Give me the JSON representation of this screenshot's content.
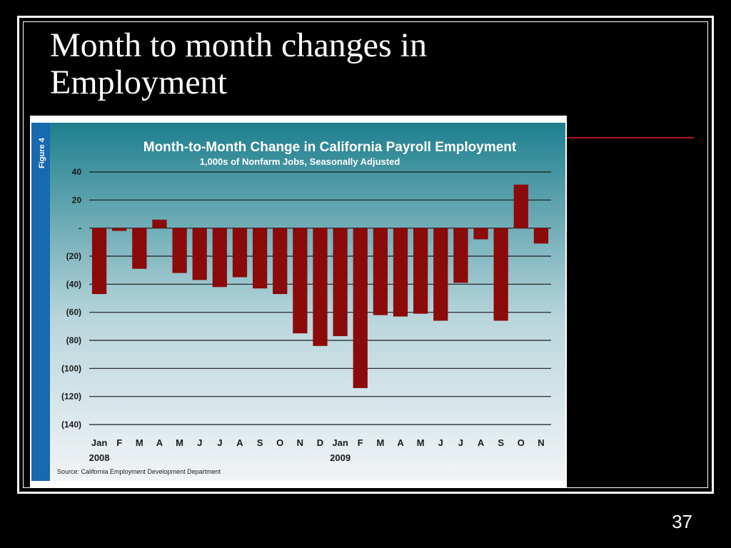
{
  "slide": {
    "title_lines": [
      "Month to month changes in",
      "Employment"
    ],
    "page_number": "37"
  },
  "colors": {
    "background": "#000000",
    "bar": "#8b0a0a",
    "panel_top": "#1e7f8e",
    "panel_bottom": "#f2f4f6",
    "side_label_bg": "#1769b0",
    "accent_rule": "#b01818"
  },
  "chart_data": {
    "type": "bar",
    "figure_label": "Figure 4",
    "title": "Month-to-Month Change in California Payroll Employment",
    "subtitle": "1,000s of Nonfarm Jobs, Seasonally Adjusted",
    "source": "Source: California Employment Development Department",
    "categories": [
      "Jan",
      "F",
      "M",
      "A",
      "M",
      "J",
      "J",
      "A",
      "S",
      "O",
      "N",
      "D",
      "Jan",
      "F",
      "M",
      "A",
      "M",
      "J",
      "J",
      "A",
      "S",
      "O",
      "N"
    ],
    "year_labels": [
      {
        "label": "2008",
        "category_index": 0
      },
      {
        "label": "2009",
        "category_index": 12
      }
    ],
    "values": [
      -47,
      -2,
      -29,
      6,
      -32,
      -37,
      -42,
      -35,
      -43,
      -47,
      -75,
      -84,
      -77,
      -114,
      -62,
      -63,
      -61,
      -66,
      -39,
      -8,
      -66,
      31,
      -11
    ],
    "y_ticks": [
      {
        "value": 40,
        "label": "40"
      },
      {
        "value": 20,
        "label": "20"
      },
      {
        "value": 0,
        "label": "-"
      },
      {
        "value": -20,
        "label": "(20)"
      },
      {
        "value": -40,
        "label": "(40)"
      },
      {
        "value": -60,
        "label": "(60)"
      },
      {
        "value": -80,
        "label": "(80)"
      },
      {
        "value": -100,
        "label": "(100)"
      },
      {
        "value": -120,
        "label": "(120)"
      },
      {
        "value": -140,
        "label": "(140)"
      }
    ],
    "ylim": [
      -140,
      40
    ],
    "grid": true,
    "legend": "none"
  }
}
